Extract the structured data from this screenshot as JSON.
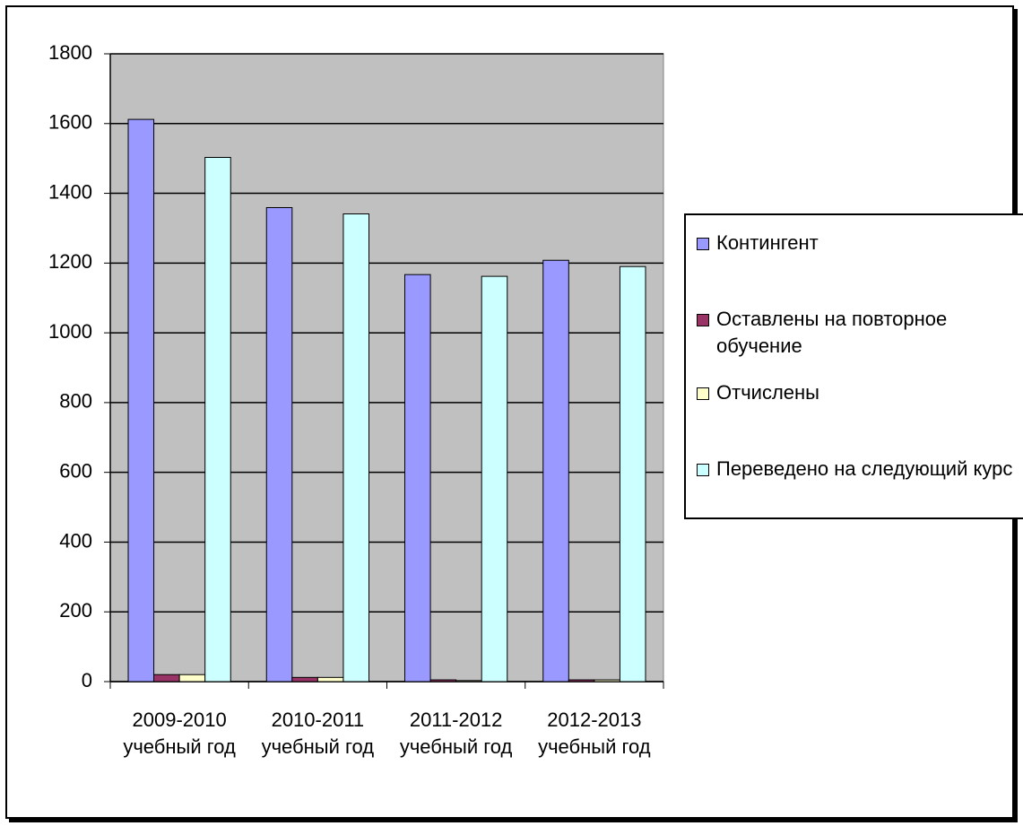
{
  "chart_data": {
    "type": "bar",
    "categories": [
      "2009-2010 учебный год",
      "2010-2011 учебный год",
      "2011-2012 учебный год",
      "2012-2013 учебный год"
    ],
    "series": [
      {
        "name": "Контингент",
        "color": "#9999ff",
        "values": [
          1612,
          1359,
          1167,
          1208
        ]
      },
      {
        "name": "Оставлены на повторное обучение",
        "color": "#993366",
        "values": [
          20,
          12,
          5,
          5
        ]
      },
      {
        "name": "Отчислены",
        "color": "#ffffcc",
        "values": [
          20,
          12,
          3,
          5
        ]
      },
      {
        "name": "Переведено на следующий курс",
        "color": "#ccffff",
        "values": [
          1503,
          1341,
          1162,
          1190
        ]
      }
    ],
    "ylim": [
      0,
      1800
    ],
    "yticks": [
      0,
      200,
      400,
      600,
      800,
      1000,
      1200,
      1400,
      1600,
      1800
    ],
    "grid": true,
    "plot_background": "#c0c0c0",
    "legend": "right"
  }
}
